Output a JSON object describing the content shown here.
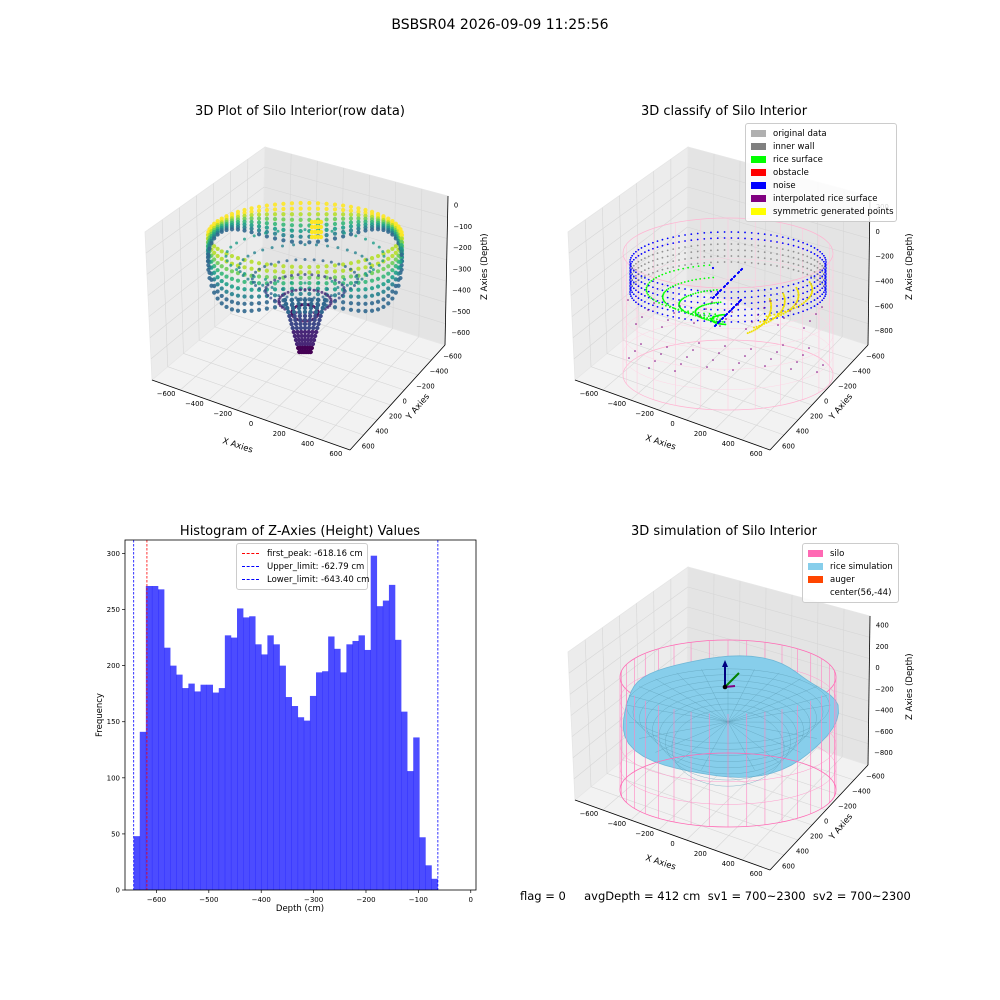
{
  "suptitle": "BSBSR04 2026-09-09 11:25:56",
  "footer": "flag = 0     avgDepth = 412 cm  sv1 = 700~2300  sv2 = 700~2300",
  "chart_data": [
    {
      "type": "scatter",
      "title": "3D Plot of Silo Interior(row data)",
      "xlabel": "X Axies",
      "ylabel": "Y Axies",
      "zlabel": "Z Axies (Depth)",
      "x_ticks": [
        "−600",
        "−400",
        "−200",
        "0",
        "200",
        "400",
        "600"
      ],
      "y_ticks": [
        "−600",
        "−400",
        "−200",
        "0",
        "200",
        "400",
        "600"
      ],
      "z_ticks": [
        "0",
        "−100",
        "−200",
        "−300",
        "−400",
        "−500",
        "−600"
      ],
      "colormap": "viridis"
    },
    {
      "type": "scatter",
      "title": "3D classify of Silo Interior",
      "xlabel": "X Axies",
      "ylabel": "Y Axies",
      "zlabel": "Z Axies (Depth)",
      "x_ticks": [
        "−600",
        "−400",
        "−200",
        "0",
        "200",
        "400",
        "600"
      ],
      "y_ticks": [
        "−600",
        "−400",
        "−200",
        "0",
        "200",
        "400",
        "600"
      ],
      "z_ticks": [
        "200",
        "0",
        "−200",
        "−400",
        "−600",
        "−800"
      ],
      "legend": [
        {
          "label": "original data",
          "color": "#b0b0b0"
        },
        {
          "label": "inner wall",
          "color": "#808080"
        },
        {
          "label": "rice surface",
          "color": "#00ff00"
        },
        {
          "label": "obstacle",
          "color": "#ff0000"
        },
        {
          "label": "noise",
          "color": "#0000ff"
        },
        {
          "label": "interpolated rice surface",
          "color": "#800080"
        },
        {
          "label": "symmetric generated points",
          "color": "#ffff00"
        }
      ]
    },
    {
      "type": "bar",
      "title": "Histogram of Z-Axies (Height) Values",
      "xlabel": "Depth (cm)",
      "ylabel": "Frequency",
      "xlim": [
        -660,
        10
      ],
      "ylim": [
        0,
        312
      ],
      "x_ticks": [
        -600,
        -500,
        -400,
        -300,
        -200,
        -100,
        0
      ],
      "x_tick_labels": [
        "−600",
        "−500",
        "−400",
        "−300",
        "−200",
        "−100",
        "0"
      ],
      "y_ticks": [
        0,
        50,
        100,
        150,
        200,
        250,
        300
      ],
      "bin_start": -643.4,
      "bin_width": 11.6,
      "values": [
        48,
        141,
        271,
        271,
        268,
        216,
        200,
        192,
        180,
        184,
        177,
        183,
        183,
        176,
        180,
        227,
        225,
        251,
        243,
        244,
        219,
        210,
        227,
        219,
        200,
        172,
        164,
        154,
        151,
        173,
        194,
        195,
        226,
        215,
        194,
        219,
        222,
        227,
        214,
        298,
        253,
        258,
        272,
        223,
        159,
        106,
        136,
        47,
        22,
        10
      ],
      "bar_color": "#0000ff",
      "vlines": [
        {
          "x": -618.16,
          "label": "first_peak: -618.16 cm",
          "color": "#ff0000"
        },
        {
          "x": -62.79,
          "label": "Upper_limit: -62.79 cm",
          "color": "#0000ff"
        },
        {
          "x": -643.4,
          "label": "Lower_limit: -643.40 cm",
          "color": "#0000ff"
        }
      ]
    },
    {
      "type": "area",
      "title": "3D simulation of Silo Interior",
      "xlabel": "X Axies",
      "ylabel": "Y Axies",
      "zlabel": "Z Axies (Depth)",
      "x_ticks": [
        "−600",
        "−400",
        "−200",
        "0",
        "200",
        "400",
        "600"
      ],
      "y_ticks": [
        "−600",
        "−400",
        "−200",
        "0",
        "200",
        "400",
        "600"
      ],
      "z_ticks": [
        "400",
        "200",
        "0",
        "−200",
        "−400",
        "−600",
        "−800"
      ],
      "legend": [
        {
          "label": "silo",
          "color": "#ff69b4"
        },
        {
          "label": "rice simulation",
          "color": "#87ceeb"
        },
        {
          "label": "auger",
          "color": "#ff4500"
        },
        {
          "label": "center(56,-44)",
          "color": ""
        }
      ]
    }
  ]
}
